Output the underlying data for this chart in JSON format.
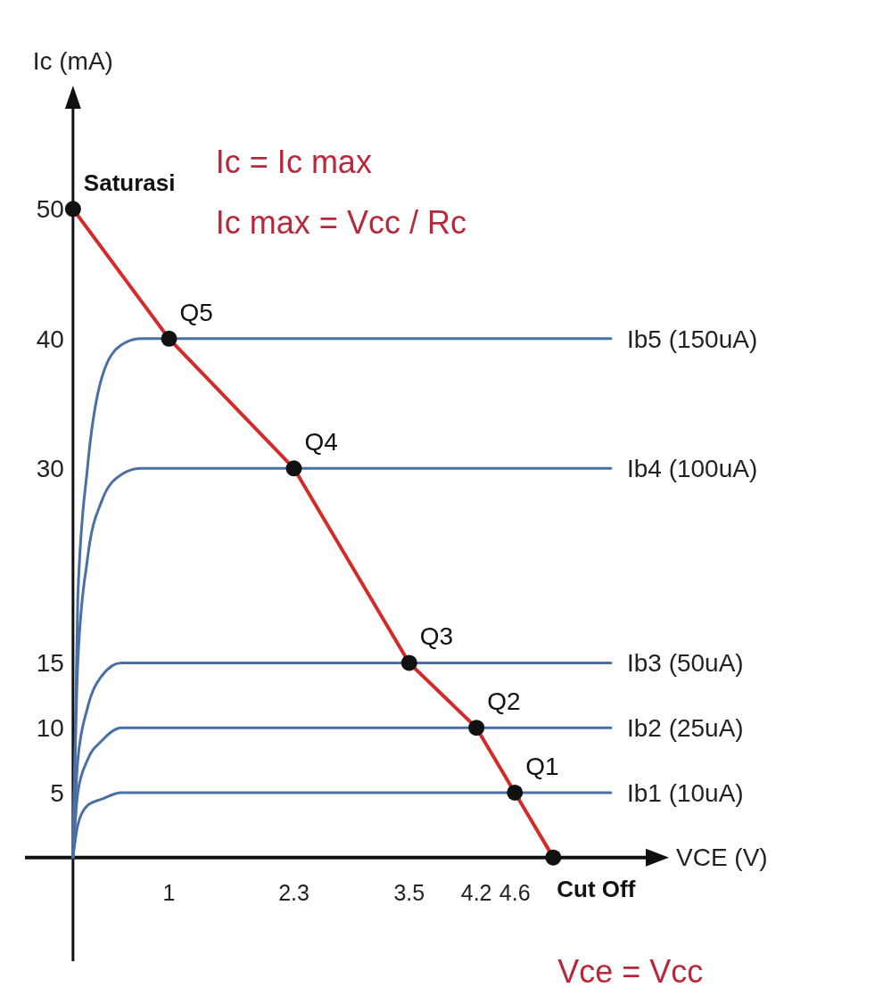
{
  "chart_data": {
    "type": "line",
    "xlabel": "VCE (V)",
    "ylabel": "Ic (mA)",
    "xlim": [
      -0.5,
      6
    ],
    "ylim": [
      -8,
      58
    ],
    "xticks": [
      1,
      2.3,
      3.5,
      4.2,
      4.6
    ],
    "yticks": [
      5,
      10,
      15,
      30,
      40,
      50
    ],
    "grid": false,
    "series": [
      {
        "name": "Ib5 (150uA)",
        "color": "#4a6fa5",
        "x": [
          0,
          0.05,
          0.15,
          0.3,
          0.5,
          0.7,
          5.6
        ],
        "values": [
          0,
          20,
          30,
          37,
          39.5,
          40,
          40
        ]
      },
      {
        "name": "Ib4 (100uA)",
        "color": "#4a6fa5",
        "x": [
          0,
          0.05,
          0.15,
          0.3,
          0.5,
          0.7,
          5.6
        ],
        "values": [
          0,
          15,
          23,
          27.5,
          29.5,
          30,
          30
        ]
      },
      {
        "name": "Ib3 (50uA)",
        "color": "#4a6fa5",
        "x": [
          0,
          0.05,
          0.15,
          0.3,
          0.5,
          0.7,
          5.6
        ],
        "values": [
          0,
          7.5,
          11.5,
          14,
          15,
          15,
          15
        ]
      },
      {
        "name": "Ib2 (25uA)",
        "color": "#4a6fa5",
        "x": [
          0,
          0.05,
          0.15,
          0.3,
          0.5,
          0.7,
          5.6
        ],
        "values": [
          0,
          5,
          7.5,
          9,
          10,
          10,
          10
        ]
      },
      {
        "name": "Ib1 (10uA)",
        "color": "#4a6fa5",
        "x": [
          0,
          0.05,
          0.15,
          0.3,
          0.5,
          0.7,
          5.6
        ],
        "values": [
          0,
          2.5,
          4,
          4.5,
          5,
          5,
          5
        ]
      },
      {
        "color": "#d42a2a",
        "marker": "circle",
        "x": [
          0,
          1,
          2.3,
          3.5,
          4.2,
          4.6,
          5
        ],
        "values": [
          50,
          40,
          30,
          15,
          10,
          5,
          0
        ]
      }
    ],
    "annotations": [
      {
        "text": "Saturasi",
        "x": 0,
        "y": 50
      },
      {
        "text": "Q5",
        "x": 1,
        "y": 40
      },
      {
        "text": "Q4",
        "x": 2.3,
        "y": 30
      },
      {
        "text": "Q3",
        "x": 3.5,
        "y": 15
      },
      {
        "text": "Q2",
        "x": 4.2,
        "y": 10
      },
      {
        "text": "Q1",
        "x": 4.6,
        "y": 5
      },
      {
        "text": "Cut Off",
        "x": 5,
        "y": 0
      },
      "Ic = Ic max",
      "Ic max = Vcc / Rc",
      "Vce = Vcc"
    ]
  }
}
